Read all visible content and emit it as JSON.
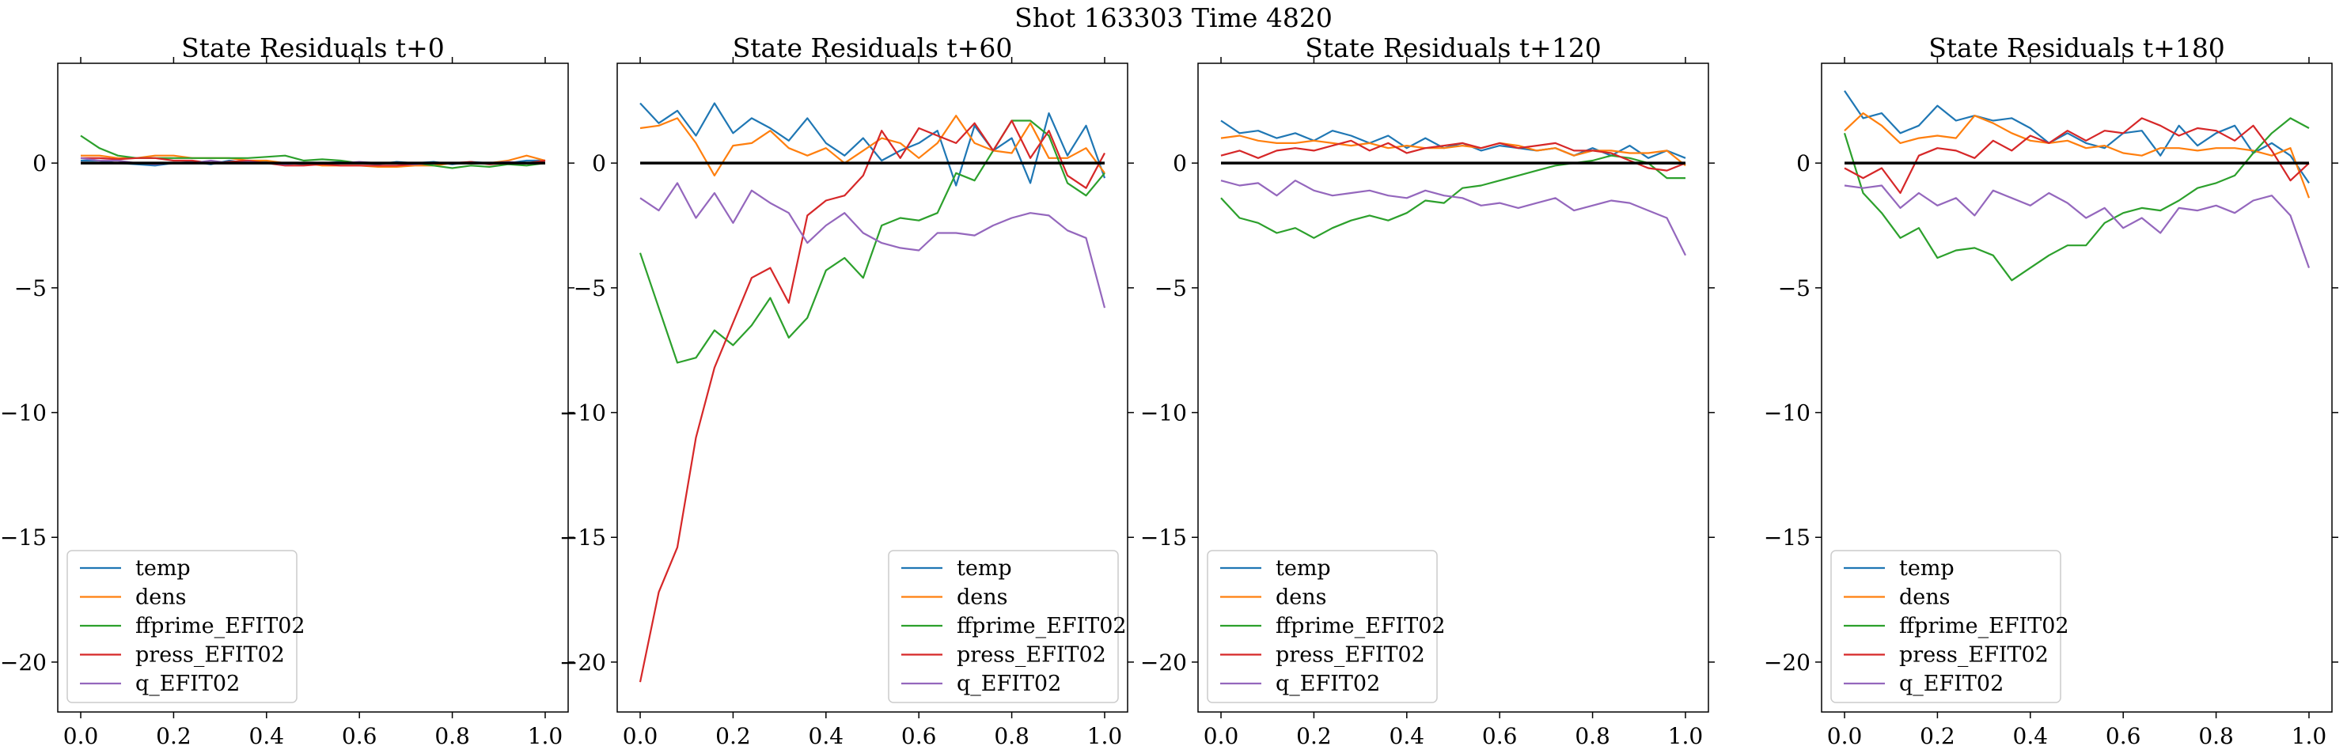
{
  "title": "Shot 163303   Time 4820",
  "colors": {
    "temp": "#1f77b4",
    "dens": "#ff7f0e",
    "ffprime_EFIT02": "#2ca02c",
    "press_EFIT02": "#d62728",
    "q_EFIT02": "#9467bd",
    "zero_line": "#000000"
  },
  "chart_data": [
    {
      "type": "line",
      "title": "State Residuals t+0",
      "xlim": [
        0,
        1
      ],
      "ylim": [
        -22,
        4
      ],
      "xticks": [
        0.0,
        0.2,
        0.4,
        0.6,
        0.8,
        1.0
      ],
      "xtick_labels": [
        "0.0",
        "0.2",
        "0.4",
        "0.6",
        "0.8",
        "1.0"
      ],
      "yticks": [
        0,
        -5,
        -10,
        -15,
        -20
      ],
      "ytick_labels": [
        "0",
        "−5",
        "−10",
        "−15",
        "−20"
      ],
      "legend_position": "lower-left",
      "zero_line": true,
      "x": [
        0.0,
        0.04,
        0.08,
        0.12,
        0.16,
        0.2,
        0.24,
        0.28,
        0.32,
        0.36,
        0.4,
        0.44,
        0.48,
        0.52,
        0.56,
        0.6,
        0.64,
        0.68,
        0.72,
        0.76,
        0.8,
        0.84,
        0.88,
        0.92,
        0.96,
        1.0
      ],
      "series": [
        {
          "name": "temp",
          "values": [
            0.1,
            0.1,
            0.0,
            -0.05,
            -0.1,
            0.0,
            0.05,
            -0.05,
            0.1,
            0.0,
            0.05,
            0.0,
            -0.05,
            0.0,
            0.05,
            0.0,
            -0.05,
            0.05,
            0.0,
            0.05,
            -0.05,
            0.05,
            0.0,
            0.0,
            0.1,
            0.1
          ]
        },
        {
          "name": "dens",
          "values": [
            0.3,
            0.3,
            0.2,
            0.2,
            0.3,
            0.3,
            0.2,
            0.2,
            0.2,
            0.1,
            0.1,
            0.0,
            0.0,
            -0.1,
            -0.1,
            -0.1,
            -0.15,
            -0.15,
            -0.1,
            -0.1,
            0.0,
            0.0,
            0.0,
            0.1,
            0.3,
            0.1
          ]
        },
        {
          "name": "ffprime_EFIT02",
          "values": [
            1.1,
            0.6,
            0.3,
            0.2,
            0.2,
            0.2,
            0.2,
            0.2,
            0.2,
            0.2,
            0.25,
            0.3,
            0.1,
            0.15,
            0.1,
            0.0,
            0.0,
            0.0,
            0.0,
            -0.1,
            -0.2,
            -0.1,
            -0.15,
            -0.05,
            -0.1,
            0.0
          ]
        },
        {
          "name": "press_EFIT02",
          "values": [
            0.2,
            0.2,
            0.15,
            0.2,
            0.2,
            0.1,
            0.1,
            0.0,
            0.05,
            0.1,
            0.0,
            -0.1,
            -0.1,
            -0.05,
            -0.1,
            -0.1,
            -0.1,
            -0.1,
            -0.05,
            0.0,
            0.0,
            0.05,
            -0.05,
            0.0,
            0.0,
            0.1
          ]
        },
        {
          "name": "q_EFIT02",
          "values": [
            0.2,
            0.1,
            0.1,
            0.0,
            -0.05,
            0.0,
            0.0,
            0.1,
            0.0,
            0.05,
            0.0,
            -0.05,
            0.0,
            0.0,
            0.0,
            0.05,
            0.0,
            0.0,
            -0.05,
            0.0,
            0.0,
            0.0,
            0.0,
            0.05,
            0.0,
            0.0
          ]
        }
      ]
    },
    {
      "type": "line",
      "title": "State Residuals t+60",
      "xlim": [
        0,
        1
      ],
      "ylim": [
        -22,
        4
      ],
      "xticks": [
        0.0,
        0.2,
        0.4,
        0.6,
        0.8,
        1.0
      ],
      "xtick_labels": [
        "0.0",
        "0.2",
        "0.4",
        "0.6",
        "0.8",
        "1.0"
      ],
      "yticks": [
        0,
        -5,
        -10,
        -15,
        -20
      ],
      "ytick_labels": [
        "0",
        "−5",
        "−10",
        "−15",
        "−20"
      ],
      "legend_position": "lower-right",
      "zero_line": true,
      "x": [
        0.0,
        0.04,
        0.08,
        0.12,
        0.16,
        0.2,
        0.24,
        0.28,
        0.32,
        0.36,
        0.4,
        0.44,
        0.48,
        0.52,
        0.56,
        0.6,
        0.64,
        0.68,
        0.72,
        0.76,
        0.8,
        0.84,
        0.88,
        0.92,
        0.96,
        1.0
      ],
      "series": [
        {
          "name": "temp",
          "values": [
            2.4,
            1.6,
            2.1,
            1.1,
            2.4,
            1.2,
            1.8,
            1.4,
            0.9,
            1.8,
            0.8,
            0.3,
            1.0,
            0.1,
            0.5,
            0.8,
            1.3,
            -0.9,
            1.5,
            0.5,
            1.0,
            -0.8,
            2.0,
            0.3,
            1.5,
            -0.6
          ]
        },
        {
          "name": "dens",
          "values": [
            1.4,
            1.5,
            1.8,
            0.8,
            -0.5,
            0.7,
            0.8,
            1.3,
            0.6,
            0.3,
            0.6,
            0.0,
            0.5,
            1.0,
            0.8,
            0.2,
            0.8,
            1.9,
            0.8,
            0.5,
            0.4,
            1.6,
            0.2,
            0.2,
            0.6,
            -0.4
          ]
        },
        {
          "name": "ffprime_EFIT02",
          "values": [
            -3.6,
            -5.8,
            -8.0,
            -7.8,
            -6.7,
            -7.3,
            -6.5,
            -5.4,
            -7.0,
            -6.2,
            -4.3,
            -3.8,
            -4.6,
            -2.5,
            -2.2,
            -2.3,
            -2.0,
            -0.4,
            -0.7,
            0.5,
            1.7,
            1.7,
            1.1,
            -0.8,
            -1.3,
            -0.4
          ]
        },
        {
          "name": "press_EFIT02",
          "values": [
            -20.8,
            -17.2,
            -15.4,
            -11.0,
            -8.2,
            -6.4,
            -4.6,
            -4.2,
            -5.6,
            -2.1,
            -1.5,
            -1.3,
            -0.5,
            1.3,
            0.2,
            1.4,
            1.1,
            0.8,
            1.6,
            0.5,
            1.7,
            0.2,
            1.3,
            -0.5,
            -1.0,
            0.4
          ]
        },
        {
          "name": "q_EFIT02",
          "values": [
            -1.4,
            -1.9,
            -0.8,
            -2.2,
            -1.2,
            -2.4,
            -1.1,
            -1.6,
            -2.0,
            -3.2,
            -2.5,
            -2.0,
            -2.8,
            -3.2,
            -3.4,
            -3.5,
            -2.8,
            -2.8,
            -2.9,
            -2.5,
            -2.2,
            -2.0,
            -2.1,
            -2.7,
            -3.0,
            -5.8
          ]
        }
      ]
    },
    {
      "type": "line",
      "title": "State Residuals t+120",
      "xlim": [
        0,
        1
      ],
      "ylim": [
        -22,
        4
      ],
      "xticks": [
        0.0,
        0.2,
        0.4,
        0.6,
        0.8,
        1.0
      ],
      "xtick_labels": [
        "0.0",
        "0.2",
        "0.4",
        "0.6",
        "0.8",
        "1.0"
      ],
      "yticks": [
        0,
        -5,
        -10,
        -15,
        -20
      ],
      "ytick_labels": [
        "0",
        "−5",
        "−10",
        "−15",
        "−20"
      ],
      "legend_position": "lower-left",
      "zero_line": true,
      "x": [
        0.0,
        0.04,
        0.08,
        0.12,
        0.16,
        0.2,
        0.24,
        0.28,
        0.32,
        0.36,
        0.4,
        0.44,
        0.48,
        0.52,
        0.56,
        0.6,
        0.64,
        0.68,
        0.72,
        0.76,
        0.8,
        0.84,
        0.88,
        0.92,
        0.96,
        1.0
      ],
      "series": [
        {
          "name": "temp",
          "values": [
            1.7,
            1.2,
            1.3,
            1.0,
            1.2,
            0.9,
            1.3,
            1.1,
            0.8,
            1.1,
            0.6,
            1.0,
            0.6,
            0.8,
            0.5,
            0.7,
            0.6,
            0.5,
            0.6,
            0.3,
            0.6,
            0.3,
            0.7,
            0.2,
            0.5,
            0.2
          ]
        },
        {
          "name": "dens",
          "values": [
            1.0,
            1.1,
            0.9,
            0.8,
            0.8,
            0.9,
            0.8,
            0.7,
            0.8,
            0.6,
            0.7,
            0.6,
            0.6,
            0.7,
            0.6,
            0.8,
            0.7,
            0.5,
            0.6,
            0.3,
            0.5,
            0.5,
            0.4,
            0.4,
            0.5,
            -0.1
          ]
        },
        {
          "name": "ffprime_EFIT02",
          "values": [
            -1.4,
            -2.2,
            -2.4,
            -2.8,
            -2.6,
            -3.0,
            -2.6,
            -2.3,
            -2.1,
            -2.3,
            -2.0,
            -1.5,
            -1.6,
            -1.0,
            -0.9,
            -0.7,
            -0.5,
            -0.3,
            -0.1,
            0.0,
            0.1,
            0.3,
            0.2,
            0.0,
            -0.6,
            -0.6
          ]
        },
        {
          "name": "press_EFIT02",
          "values": [
            0.3,
            0.5,
            0.2,
            0.5,
            0.6,
            0.5,
            0.7,
            0.9,
            0.5,
            0.8,
            0.4,
            0.6,
            0.7,
            0.8,
            0.6,
            0.8,
            0.6,
            0.7,
            0.8,
            0.5,
            0.5,
            0.4,
            0.1,
            -0.2,
            -0.3,
            0.0
          ]
        },
        {
          "name": "q_EFIT02",
          "values": [
            -0.7,
            -0.9,
            -0.8,
            -1.3,
            -0.7,
            -1.1,
            -1.3,
            -1.2,
            -1.1,
            -1.3,
            -1.4,
            -1.1,
            -1.3,
            -1.4,
            -1.7,
            -1.6,
            -1.8,
            -1.6,
            -1.4,
            -1.9,
            -1.7,
            -1.5,
            -1.6,
            -1.9,
            -2.2,
            -3.7
          ]
        }
      ]
    },
    {
      "type": "line",
      "title": "State Residuals t+180",
      "xlim": [
        0,
        1
      ],
      "ylim": [
        -22,
        4
      ],
      "xticks": [
        0.0,
        0.2,
        0.4,
        0.6,
        0.8,
        1.0
      ],
      "xtick_labels": [
        "0.0",
        "0.2",
        "0.4",
        "0.6",
        "0.8",
        "1.0"
      ],
      "yticks": [
        0,
        -5,
        -10,
        -15,
        -20
      ],
      "ytick_labels": [
        "0",
        "−5",
        "−10",
        "−15",
        "−20"
      ],
      "legend_position": "lower-left",
      "zero_line": true,
      "x": [
        0.0,
        0.04,
        0.08,
        0.12,
        0.16,
        0.2,
        0.24,
        0.28,
        0.32,
        0.36,
        0.4,
        0.44,
        0.48,
        0.52,
        0.56,
        0.6,
        0.64,
        0.68,
        0.72,
        0.76,
        0.8,
        0.84,
        0.88,
        0.92,
        0.96,
        1.0
      ],
      "series": [
        {
          "name": "temp",
          "values": [
            2.9,
            1.8,
            2.0,
            1.2,
            1.5,
            2.3,
            1.7,
            1.9,
            1.7,
            1.8,
            1.4,
            0.8,
            1.2,
            0.8,
            0.6,
            1.2,
            1.3,
            0.3,
            1.5,
            0.7,
            1.2,
            1.5,
            0.4,
            0.8,
            0.3,
            -0.8
          ]
        },
        {
          "name": "dens",
          "values": [
            1.3,
            2.0,
            1.5,
            0.8,
            1.0,
            1.1,
            1.0,
            1.9,
            1.6,
            1.2,
            0.9,
            0.8,
            0.9,
            0.6,
            0.7,
            0.4,
            0.3,
            0.6,
            0.6,
            0.5,
            0.6,
            0.6,
            0.5,
            0.3,
            0.6,
            -1.4
          ]
        },
        {
          "name": "ffprime_EFIT02",
          "values": [
            1.2,
            -1.2,
            -2.0,
            -3.0,
            -2.6,
            -3.8,
            -3.5,
            -3.4,
            -3.7,
            -4.7,
            -4.2,
            -3.7,
            -3.3,
            -3.3,
            -2.4,
            -2.0,
            -1.8,
            -1.9,
            -1.5,
            -1.0,
            -0.8,
            -0.5,
            0.4,
            1.2,
            1.8,
            1.4
          ]
        },
        {
          "name": "press_EFIT02",
          "values": [
            -0.2,
            -0.6,
            -0.2,
            -1.2,
            0.3,
            0.6,
            0.5,
            0.2,
            0.9,
            0.5,
            1.1,
            0.8,
            1.3,
            0.9,
            1.3,
            1.2,
            1.8,
            1.5,
            1.1,
            1.4,
            1.3,
            0.9,
            1.5,
            0.5,
            -0.7,
            0.0
          ]
        },
        {
          "name": "q_EFIT02",
          "values": [
            -0.9,
            -1.0,
            -0.9,
            -1.8,
            -1.2,
            -1.7,
            -1.4,
            -2.1,
            -1.1,
            -1.4,
            -1.7,
            -1.2,
            -1.6,
            -2.2,
            -1.8,
            -2.6,
            -2.2,
            -2.8,
            -1.8,
            -1.9,
            -1.7,
            -2.0,
            -1.5,
            -1.3,
            -2.1,
            -4.2
          ]
        }
      ]
    }
  ]
}
